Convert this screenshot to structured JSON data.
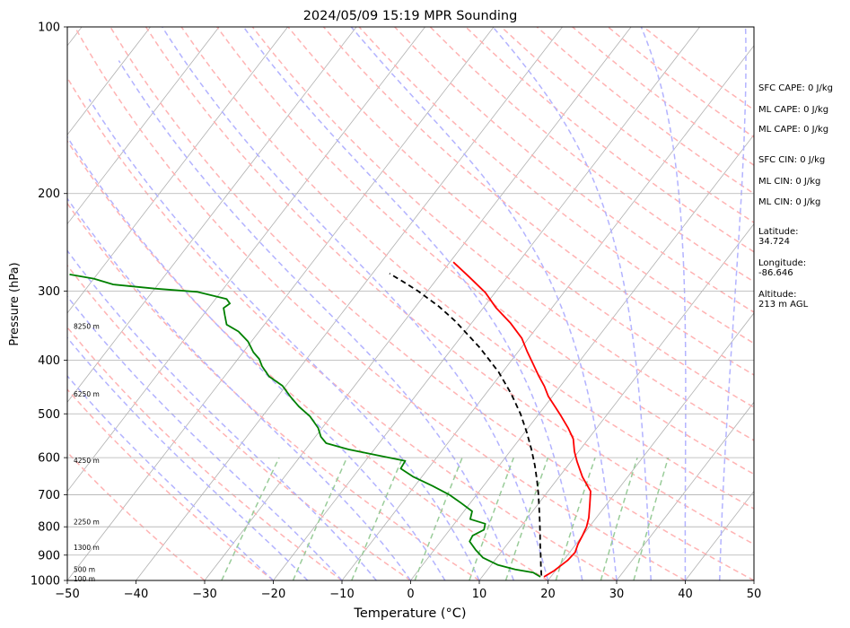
{
  "chart_data": {
    "type": "line",
    "title": "2024/05/09 15:19 MPR Sounding",
    "xlabel": "Temperature (°C)",
    "ylabel": "Pressure (hPa)",
    "xlim": [
      -50,
      50
    ],
    "ylim": [
      1000,
      100
    ],
    "y_scale": "log",
    "skew": "skew-T log-P diagram",
    "grid": true,
    "x_ticks": [
      -50,
      -40,
      -30,
      -20,
      -10,
      0,
      10,
      20,
      30,
      40,
      50
    ],
    "y_ticks": [
      100,
      200,
      300,
      400,
      500,
      600,
      700,
      800,
      900,
      1000
    ],
    "series": [
      {
        "role": "temperature",
        "color": "#ff0000",
        "style": "solid",
        "points": [
          [
            19,
            985
          ],
          [
            19.8,
            960
          ],
          [
            20.6,
            920
          ],
          [
            20.8,
            890
          ],
          [
            20.3,
            860
          ],
          [
            20,
            830
          ],
          [
            19.6,
            800
          ],
          [
            18.9,
            770
          ],
          [
            17.6,
            730
          ],
          [
            16.2,
            690
          ],
          [
            13.4,
            650
          ],
          [
            10.9,
            610
          ],
          [
            9.4,
            585
          ],
          [
            7.8,
            555
          ],
          [
            5.8,
            530
          ],
          [
            3.5,
            505
          ],
          [
            1.5,
            485
          ],
          [
            -0.6,
            465
          ],
          [
            -2.3,
            446
          ],
          [
            -4.3,
            427
          ],
          [
            -6.6,
            405
          ],
          [
            -8.8,
            385
          ],
          [
            -11,
            365
          ],
          [
            -14.3,
            343
          ],
          [
            -18.1,
            322
          ],
          [
            -21.4,
            302
          ],
          [
            -25.5,
            283
          ],
          [
            -29.5,
            266
          ]
        ]
      },
      {
        "role": "dewpoint",
        "color": "#008000",
        "style": "solid",
        "points": [
          [
            18.5,
            985
          ],
          [
            17,
            968
          ],
          [
            14,
            955
          ],
          [
            11,
            938
          ],
          [
            8,
            910
          ],
          [
            6,
            880
          ],
          [
            4.2,
            850
          ],
          [
            4,
            830
          ],
          [
            5,
            810
          ],
          [
            4.5,
            790
          ],
          [
            1.8,
            775
          ],
          [
            1.2,
            750
          ],
          [
            -1.3,
            725
          ],
          [
            -4,
            700
          ],
          [
            -7.4,
            675
          ],
          [
            -11.2,
            650
          ],
          [
            -14,
            628
          ],
          [
            -14.2,
            608
          ],
          [
            -18.6,
            595
          ],
          [
            -23.7,
            580
          ],
          [
            -27.7,
            565
          ],
          [
            -29.2,
            550
          ],
          [
            -30.6,
            530
          ],
          [
            -33.1,
            505
          ],
          [
            -35.8,
            485
          ],
          [
            -38.2,
            465
          ],
          [
            -40.5,
            445
          ],
          [
            -43.5,
            428
          ],
          [
            -45.7,
            410
          ],
          [
            -46.9,
            398
          ],
          [
            -48.5,
            387
          ],
          [
            -50.5,
            370
          ],
          [
            -53,
            355
          ],
          [
            -55.5,
            345
          ],
          [
            -56.8,
            332
          ],
          [
            -57.8,
            322
          ],
          [
            -57.4,
            316
          ],
          [
            -58.4,
            310
          ],
          [
            -63.5,
            301
          ],
          [
            -70,
            297
          ],
          [
            -76.5,
            292
          ],
          [
            -80,
            285
          ],
          [
            -84,
            280
          ]
        ]
      },
      {
        "role": "parcel profile",
        "color": "#000000",
        "style": "dashed",
        "points": [
          [
            18.5,
            980
          ],
          [
            17.3,
            940
          ],
          [
            16.1,
            900
          ],
          [
            14.8,
            860
          ],
          [
            13.5,
            820
          ],
          [
            12.1,
            780
          ],
          [
            10.6,
            740
          ],
          [
            9,
            700
          ],
          [
            7.2,
            660
          ],
          [
            5.2,
            620
          ],
          [
            2.9,
            580
          ],
          [
            0.3,
            540
          ],
          [
            -2.7,
            500
          ],
          [
            -6.3,
            460
          ],
          [
            -10.6,
            420
          ],
          [
            -16,
            380
          ],
          [
            -22.6,
            340
          ],
          [
            -26.6,
            320
          ],
          [
            -31.4,
            300
          ],
          [
            -34.2,
            290
          ],
          [
            -37.5,
            279
          ]
        ]
      }
    ],
    "height_labels": [
      "100 m",
      "500 m",
      "1300 m",
      "2250 m",
      "4250 m",
      "6250 m",
      "8250 m"
    ],
    "height_label_pressures": [
      995,
      957,
      873,
      785,
      608,
      461,
      348
    ],
    "background_lines": {
      "isotherms_color": "#b0b0b0",
      "dry_adiabats_color": "#ffb3b3",
      "moist_adiabats_color": "#b3b3ff",
      "mixing_ratio_color": "#99cc99"
    }
  },
  "stats": {
    "sfc_cape": "SFC CAPE: 0 J/kg",
    "ml_cape_1": "ML CAPE: 0 J/kg",
    "ml_cape_2": "ML CAPE: 0 J/kg",
    "sfc_cin": "SFC CIN: 0 J/kg",
    "ml_cin_1": "ML CIN: 0 J/kg",
    "ml_cin_2": "ML CIN: 0 J/kg"
  },
  "location": {
    "latitude_label": "Latitude:",
    "latitude_value": "34.724",
    "longitude_label": "Longitude:",
    "longitude_value": "-86.646",
    "altitude_label": "Altitude:",
    "altitude_value": "213 m AGL"
  }
}
